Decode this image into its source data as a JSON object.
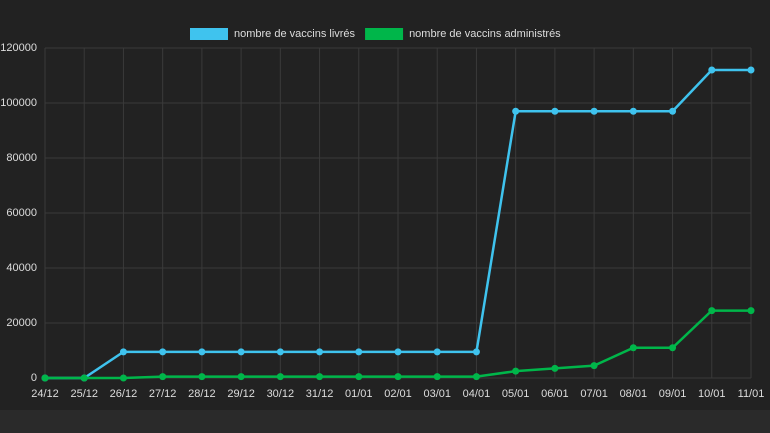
{
  "chart_data": {
    "type": "line",
    "categories": [
      "24/12",
      "25/12",
      "26/12",
      "27/12",
      "28/12",
      "29/12",
      "30/12",
      "31/12",
      "01/01",
      "02/01",
      "03/01",
      "04/01",
      "05/01",
      "06/01",
      "07/01",
      "08/01",
      "09/01",
      "10/01",
      "11/01"
    ],
    "series": [
      {
        "name": "nombre de vaccins livrés",
        "color": "#3fc3ee",
        "values": [
          0,
          0,
          9500,
          9500,
          9500,
          9500,
          9500,
          9500,
          9500,
          9500,
          9500,
          9500,
          97000,
          97000,
          97000,
          97000,
          97000,
          112000,
          112000
        ]
      },
      {
        "name": "nombre de vaccins administrés",
        "color": "#00b64a",
        "values": [
          0,
          0,
          0,
          500,
          500,
          500,
          500,
          500,
          500,
          500,
          500,
          500,
          2500,
          3500,
          4500,
          11000,
          11000,
          24500,
          24500
        ]
      }
    ],
    "ylim": [
      0,
      120000
    ],
    "yticks": [
      0,
      20000,
      40000,
      60000,
      80000,
      100000,
      120000
    ],
    "grid": true,
    "legend": "top"
  }
}
